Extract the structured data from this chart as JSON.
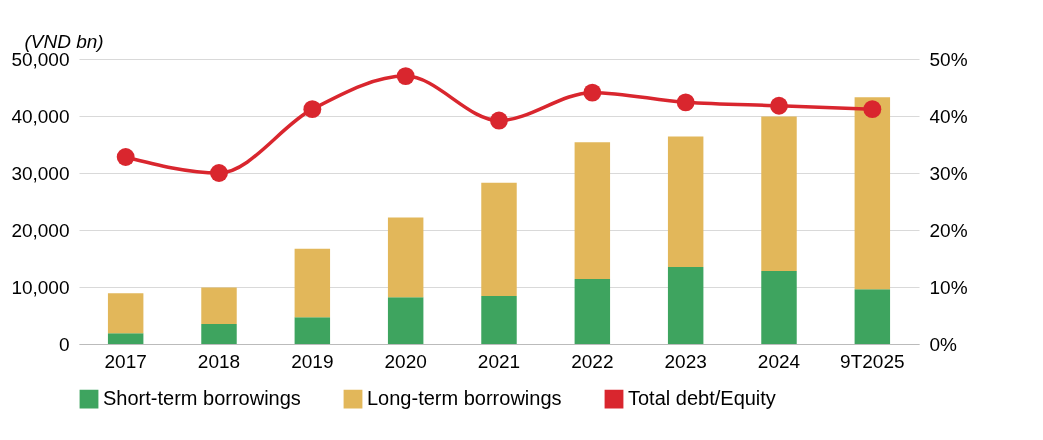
{
  "chart_data": {
    "type": "bar",
    "stacked": true,
    "ylabel": "(VND bn)",
    "categories": [
      "2017",
      "2018",
      "2019",
      "2020",
      "2021",
      "2022",
      "2023",
      "2024",
      "9T2025"
    ],
    "series": [
      {
        "name": "Short-term borrowings",
        "color": "#3ea45f",
        "values": [
          1900,
          3500,
          4700,
          8200,
          8400,
          11400,
          13500,
          12800,
          9600
        ]
      },
      {
        "name": "Long-term borrowings",
        "color": "#e2b75a",
        "values": [
          7000,
          6400,
          12000,
          14000,
          19900,
          24000,
          22900,
          27100,
          33700
        ]
      },
      {
        "name": "Total debt/Equity",
        "type": "line",
        "axis": "y2",
        "color": "#d9262e",
        "marker": "circle",
        "values": [
          32.8,
          30.0,
          41.2,
          47.0,
          39.2,
          44.1,
          42.4,
          41.8,
          41.2
        ]
      }
    ],
    "ylim": [
      0,
      50000
    ],
    "yticks": [
      0,
      {
        "value": 10000,
        "label": "10,000"
      },
      {
        "value": 20000,
        "label": "20,000"
      },
      {
        "value": 30000,
        "label": "30,000"
      },
      {
        "value": 40000,
        "label": "40,000"
      },
      {
        "value": 50000,
        "label": "50,000"
      }
    ],
    "y2lim": [
      0,
      50
    ],
    "y2ticks": [
      {
        "value": 0,
        "label": "0%"
      },
      {
        "value": 10,
        "label": "10%"
      },
      {
        "value": 20,
        "label": "20%"
      },
      {
        "value": 30,
        "label": "30%"
      },
      {
        "value": 40,
        "label": "40%"
      },
      {
        "value": 50,
        "label": "50%"
      }
    ],
    "grid": "y",
    "legend": "bottom"
  }
}
